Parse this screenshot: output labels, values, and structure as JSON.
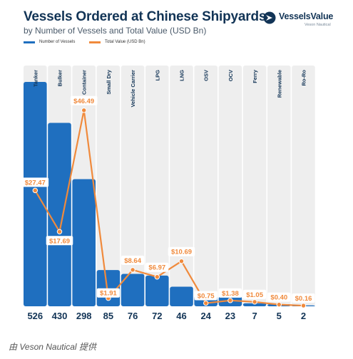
{
  "title": "Vessels Ordered at Chinese Shipyards",
  "subtitle": "by Number of Vessels and Total Value (USD Bn)",
  "brand": {
    "name": "VesselsValue",
    "sub": "Veson Nautical"
  },
  "caption": "由 Veson Nautical 提供",
  "colors": {
    "bar": "#1f6fbf",
    "line": "#f08a3c",
    "column_bg": "#eeeeee",
    "text": "#123456"
  },
  "chart_data": {
    "type": "bar",
    "categories": [
      "Tanker",
      "Bulker",
      "Container",
      "Small Dry",
      "Vehicle Carrier",
      "LPG",
      "LNG",
      "OSV",
      "OCV",
      "Ferry",
      "Renewable",
      "Ro-Ro"
    ],
    "series": [
      {
        "name": "Number of Vessels",
        "type": "bar",
        "values": [
          526,
          430,
          298,
          85,
          76,
          72,
          46,
          24,
          23,
          7,
          5,
          2
        ]
      },
      {
        "name": "Total Value (USD Bn)",
        "type": "line",
        "values": [
          27.47,
          17.69,
          46.49,
          1.91,
          8.64,
          6.97,
          10.69,
          0.75,
          1.38,
          1.05,
          0.4,
          0.16
        ],
        "labels": [
          "$27.47",
          "$17.69",
          "$46.49",
          "$1.91",
          "$8.64",
          "$6.97",
          "$10.69",
          "$0.75",
          "$1.38",
          "$1.05",
          "$0.40",
          "$0.16"
        ]
      }
    ],
    "bar_max": 580,
    "line_max": 50
  }
}
